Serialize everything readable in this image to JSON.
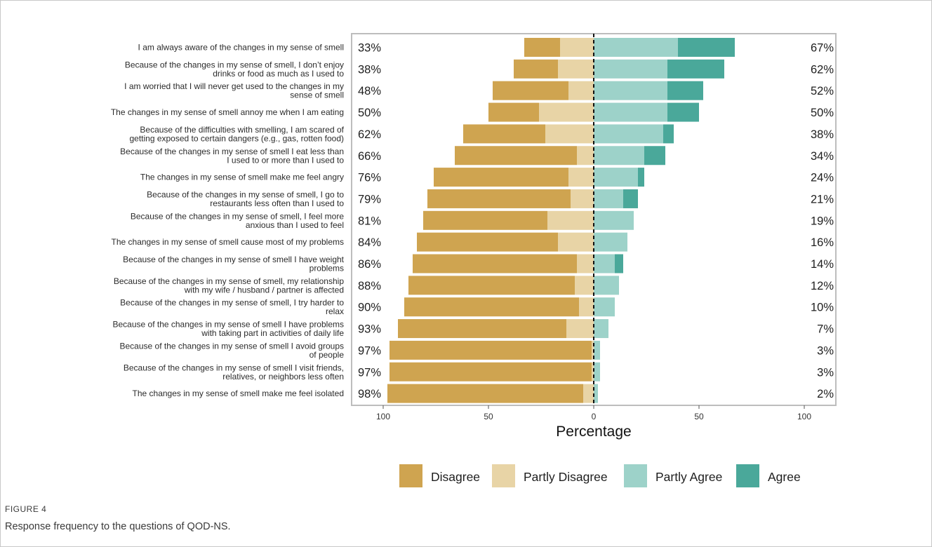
{
  "figure": {
    "label": "FIGURE 4",
    "caption": "Response frequency to the questions of QOD-NS."
  },
  "colors": {
    "Disagree": "#cfa450",
    "Partly Disagree": "#e8d4a6",
    "Partly Agree": "#9dd2c9",
    "Agree": "#4aa89a"
  },
  "chart_data": {
    "type": "bar",
    "orientation": "horizontal-diverging",
    "title": "",
    "xlabel": "Percentage",
    "ylabel": "",
    "xlim": [
      -100,
      100
    ],
    "xticks": [
      -100,
      -50,
      0,
      50,
      100
    ],
    "xtick_labels": [
      "100",
      "50",
      "0",
      "50",
      "100"
    ],
    "grid": false,
    "legend_position": "bottom",
    "categories": [
      [
        "I am always aware of the changes in my sense of smell"
      ],
      [
        "Because of the changes in my sense of smell, I don’t enjoy",
        "drinks or food as much as I used to"
      ],
      [
        "I am worried that I will never get used to the changes in my",
        "sense of smell"
      ],
      [
        "The changes in my sense of smell annoy me when I am eating"
      ],
      [
        "Because of the difficulties with smelling, I am scared of",
        "getting exposed to certain dangers (e.g., gas, rotten food)"
      ],
      [
        "Because of the changes in my sense of smell I eat less than",
        "I used to or more than I used to"
      ],
      [
        "The changes in my sense of smell make me feel angry"
      ],
      [
        "Because of the changes in my sense of smell, I go to",
        "restaurants less often than I used to"
      ],
      [
        "Because of the changes in my sense of smell, I feel more",
        "anxious than I used to feel"
      ],
      [
        "The changes in my sense of smell cause most of my problems"
      ],
      [
        "Because of the changes in my sense of smell I have weight",
        "problems"
      ],
      [
        "Because of the changes in my sense of smell, my relationship",
        "with my wife / husband / partner is affected"
      ],
      [
        "Because of the changes in my sense of smell, I try harder to",
        "relax"
      ],
      [
        "Because of the changes in my sense of smell I have problems",
        "with taking part in activities of daily life"
      ],
      [
        "Because of the changes in my sense of smell I avoid groups",
        "of people"
      ],
      [
        "Because of the changes in my sense of smell I visit friends,",
        "relatives, or neighbors less often"
      ],
      [
        "The changes in my sense of smell make me feel isolated"
      ]
    ],
    "series": [
      {
        "name": "Disagree",
        "side": "left",
        "values": [
          17,
          21,
          36,
          24,
          39,
          58,
          64,
          68,
          59,
          67,
          78,
          79,
          83,
          80,
          96,
          96,
          93
        ]
      },
      {
        "name": "Partly Disagree",
        "side": "left",
        "values": [
          16,
          17,
          12,
          26,
          23,
          8,
          12,
          11,
          22,
          17,
          8,
          9,
          7,
          13,
          1,
          1,
          5
        ]
      },
      {
        "name": "Partly Agree",
        "side": "right",
        "values": [
          40,
          35,
          35,
          35,
          33,
          24,
          21,
          14,
          19,
          16,
          10,
          12,
          10,
          7,
          3,
          3,
          2
        ]
      },
      {
        "name": "Agree",
        "side": "right",
        "values": [
          27,
          27,
          17,
          15,
          5,
          10,
          3,
          7,
          0,
          0,
          4,
          0,
          0,
          0,
          0,
          0,
          0
        ]
      }
    ],
    "left_labels": [
      "33%",
      "38%",
      "48%",
      "50%",
      "62%",
      "66%",
      "76%",
      "79%",
      "81%",
      "84%",
      "86%",
      "88%",
      "90%",
      "93%",
      "97%",
      "97%",
      "98%"
    ],
    "right_labels": [
      "67%",
      "62%",
      "52%",
      "50%",
      "38%",
      "34%",
      "24%",
      "21%",
      "19%",
      "16%",
      "14%",
      "12%",
      "10%",
      "7%",
      "3%",
      "3%",
      "2%"
    ],
    "legend": [
      "Disagree",
      "Partly Disagree",
      "Partly Agree",
      "Agree"
    ]
  }
}
